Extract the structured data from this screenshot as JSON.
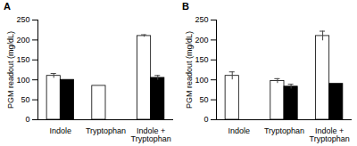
{
  "chart_data": [
    {
      "type": "bar",
      "title": "A",
      "ylabel": "PGM readout (mg/dL)",
      "categories": [
        "Indole",
        "Tryptophan",
        "Indole + Tryptophan"
      ],
      "series": [
        {
          "color": "#ffffff",
          "values": [
            110,
            85,
            210
          ],
          "errors": [
            6,
            null,
            3
          ]
        },
        {
          "color": "#000000",
          "values": [
            100,
            null,
            105
          ],
          "errors": [
            null,
            null,
            6
          ]
        }
      ],
      "ylim": [
        0,
        250
      ],
      "yticks": [
        0,
        50,
        100,
        150,
        200,
        250
      ]
    },
    {
      "type": "bar",
      "title": "B",
      "ylabel": "PGM readout (mg/dL)",
      "categories": [
        "Indole",
        "Tryptophan",
        "Indole + Tryptophan"
      ],
      "series": [
        {
          "color": "#ffffff",
          "values": [
            110,
            97,
            210
          ],
          "errors": [
            10,
            6,
            12
          ]
        },
        {
          "color": "#000000",
          "values": [
            null,
            83,
            90
          ],
          "errors": [
            null,
            6,
            null
          ]
        }
      ],
      "ylim": [
        0,
        250
      ],
      "yticks": [
        0,
        50,
        100,
        150,
        200,
        250
      ]
    }
  ]
}
